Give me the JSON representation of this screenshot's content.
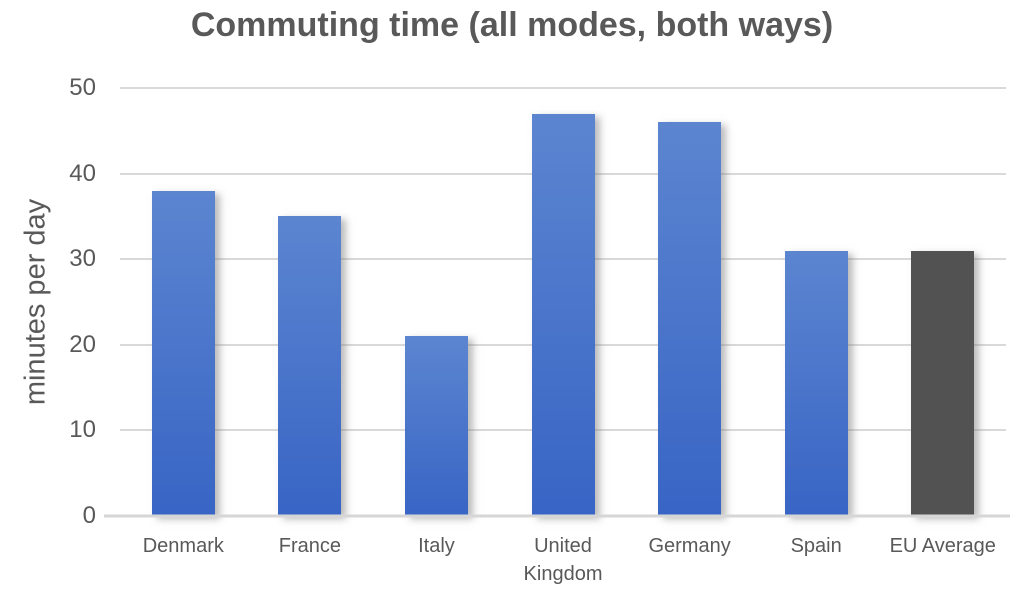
{
  "chart_data": {
    "type": "bar",
    "title": "Commuting time (all modes, both ways)",
    "ylabel": "minutes per day",
    "xlabel": "",
    "categories": [
      "Denmark",
      "France",
      "Italy",
      "United Kingdom",
      "Germany",
      "Spain",
      "EU Average"
    ],
    "values": [
      38,
      35,
      21,
      47,
      46,
      31,
      31
    ],
    "ylim": [
      0,
      50
    ],
    "yticks": [
      0,
      10,
      20,
      30,
      40,
      50
    ],
    "grid": true,
    "legend": false,
    "highlight_category": "EU Average",
    "colors": {
      "bar_gradient_top": "#5c85d0",
      "bar_gradient_bottom": "#3865c5",
      "highlight_bar": "#525252",
      "gridline": "#d9d9d9",
      "axis_line": "#d6d6d6",
      "text": "#595959"
    }
  }
}
